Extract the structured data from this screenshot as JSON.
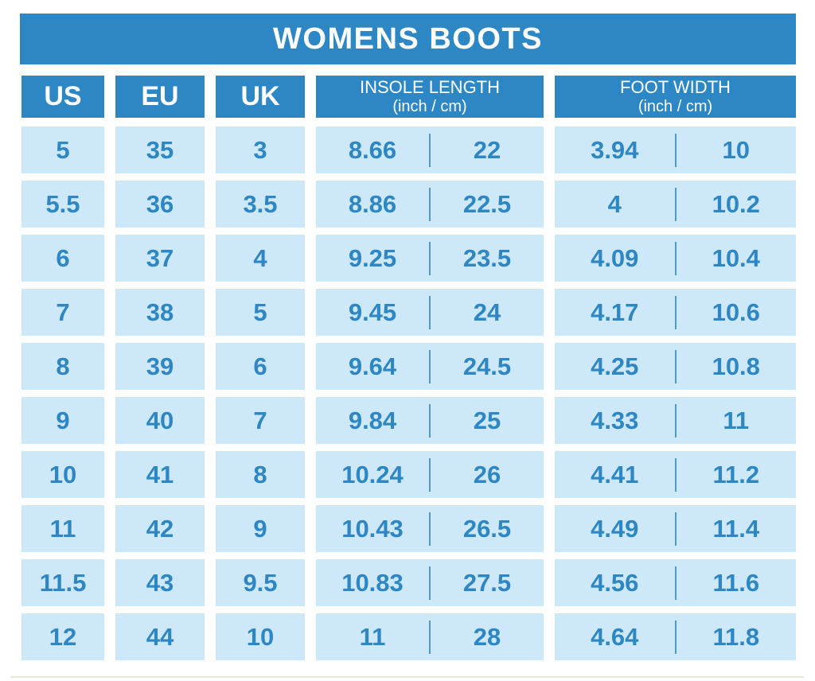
{
  "title": "WOMENS BOOTS",
  "colors": {
    "header_blue": "#2d87c4",
    "cell_light_blue": "#cde8f8",
    "value_text_blue": "#2e86c2",
    "divider_blue": "#4d9bcb",
    "background": "#ffffff"
  },
  "columns": {
    "us": "US",
    "eu": "EU",
    "uk": "UK",
    "insole_line1": "INSOLE LENGTH",
    "insole_line2": "(inch / cm)",
    "foot_line1": "FOOT WIDTH",
    "foot_line2": "(inch / cm)"
  },
  "rows": [
    {
      "us": "5",
      "eu": "35",
      "uk": "3",
      "insole_in": "8.66",
      "insole_cm": "22",
      "width_in": "3.94",
      "width_cm": "10"
    },
    {
      "us": "5.5",
      "eu": "36",
      "uk": "3.5",
      "insole_in": "8.86",
      "insole_cm": "22.5",
      "width_in": "4",
      "width_cm": "10.2"
    },
    {
      "us": "6",
      "eu": "37",
      "uk": "4",
      "insole_in": "9.25",
      "insole_cm": "23.5",
      "width_in": "4.09",
      "width_cm": "10.4"
    },
    {
      "us": "7",
      "eu": "38",
      "uk": "5",
      "insole_in": "9.45",
      "insole_cm": "24",
      "width_in": "4.17",
      "width_cm": "10.6"
    },
    {
      "us": "8",
      "eu": "39",
      "uk": "6",
      "insole_in": "9.64",
      "insole_cm": "24.5",
      "width_in": "4.25",
      "width_cm": "10.8"
    },
    {
      "us": "9",
      "eu": "40",
      "uk": "7",
      "insole_in": "9.84",
      "insole_cm": "25",
      "width_in": "4.33",
      "width_cm": "11"
    },
    {
      "us": "10",
      "eu": "41",
      "uk": "8",
      "insole_in": "10.24",
      "insole_cm": "26",
      "width_in": "4.41",
      "width_cm": "11.2"
    },
    {
      "us": "11",
      "eu": "42",
      "uk": "9",
      "insole_in": "10.43",
      "insole_cm": "26.5",
      "width_in": "4.49",
      "width_cm": "11.4"
    },
    {
      "us": "11.5",
      "eu": "43",
      "uk": "9.5",
      "insole_in": "10.83",
      "insole_cm": "27.5",
      "width_in": "4.56",
      "width_cm": "11.6"
    },
    {
      "us": "12",
      "eu": "44",
      "uk": "10",
      "insole_in": "11",
      "insole_cm": "28",
      "width_in": "4.64",
      "width_cm": "11.8"
    }
  ],
  "chart_data": {
    "type": "table",
    "title": "WOMENS BOOTS",
    "columns": [
      "US",
      "EU",
      "UK",
      "INSOLE LENGTH inch",
      "INSOLE LENGTH cm",
      "FOOT WIDTH inch",
      "FOOT WIDTH cm"
    ],
    "rows": [
      [
        5,
        35,
        3,
        8.66,
        22,
        3.94,
        10
      ],
      [
        5.5,
        36,
        3.5,
        8.86,
        22.5,
        4,
        10.2
      ],
      [
        6,
        37,
        4,
        9.25,
        23.5,
        4.09,
        10.4
      ],
      [
        7,
        38,
        5,
        9.45,
        24,
        4.17,
        10.6
      ],
      [
        8,
        39,
        6,
        9.64,
        24.5,
        4.25,
        10.8
      ],
      [
        9,
        40,
        7,
        9.84,
        25,
        4.33,
        11
      ],
      [
        10,
        41,
        8,
        10.24,
        26,
        4.41,
        11.2
      ],
      [
        11,
        42,
        9,
        10.43,
        26.5,
        4.49,
        11.4
      ],
      [
        11.5,
        43,
        9.5,
        10.83,
        27.5,
        4.56,
        11.6
      ],
      [
        12,
        44,
        10,
        11,
        28,
        4.64,
        11.8
      ]
    ]
  }
}
